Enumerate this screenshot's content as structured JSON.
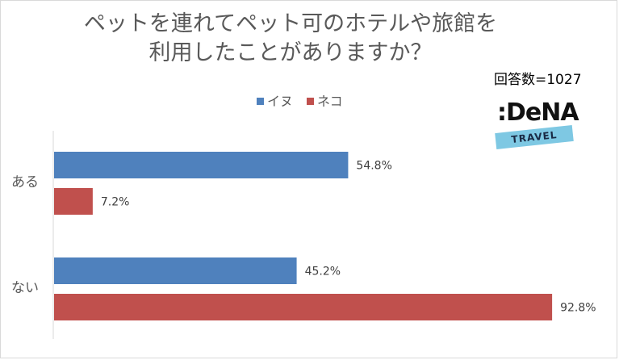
{
  "title_line1": "ペットを連れてペット可のホテルや旅館を",
  "title_line2": "利用したことがありますか？",
  "respondents": "回答数=1027",
  "logo_text": "DeNA",
  "logo_sub": "TRAVEL",
  "chart_data": {
    "type": "bar",
    "orientation": "horizontal",
    "categories": [
      "ある",
      "ない"
    ],
    "series": [
      {
        "name": "イヌ",
        "color": "#4f81bd",
        "values": [
          54.8,
          45.2
        ]
      },
      {
        "name": "ネコ",
        "color": "#c0504d",
        "values": [
          7.2,
          92.8
        ]
      }
    ],
    "value_format": "percent",
    "xlim": [
      0,
      100
    ],
    "legend": "top",
    "grid": false
  }
}
